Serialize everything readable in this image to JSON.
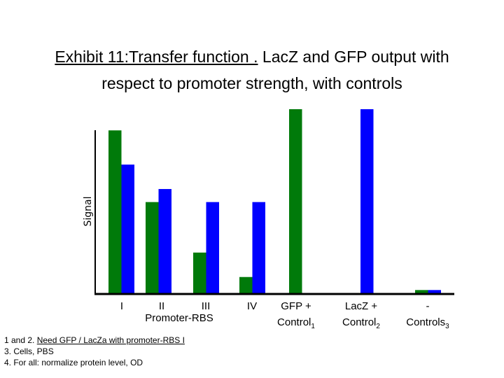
{
  "title": {
    "line1_underlined": "Exhibit 11:Transfer function .",
    "line1_rest": " LacZ and GFP output with",
    "line2": "respect to promoter strength, with controls"
  },
  "notes": {
    "note1_prefix": "1 and 2. ",
    "note1_underlined": "Need GFP / LacZa with promoter-RBS I",
    "note2": "3. Cells, PBS",
    "note3": "4. For all: normalize protein level, OD"
  },
  "colors": {
    "gfp": "#007a0a",
    "lacz": "#0000ff",
    "axis": "#000000"
  },
  "chart_data": {
    "type": "bar",
    "title": "Exhibit 11:Transfer function . LacZ and GFP output with respect to promoter strength, with controls",
    "ylabel": "Signal",
    "xlabel": "Promoter-RBS",
    "ylim": [
      0,
      113
    ],
    "grid": false,
    "categories": [
      {
        "label": "I",
        "sub": ""
      },
      {
        "label": "II",
        "sub": ""
      },
      {
        "label": "III",
        "sub": ""
      },
      {
        "label": "IV",
        "sub": ""
      },
      {
        "label": "GFP +",
        "line2": "Control",
        "sub": "1"
      },
      {
        "label": "LacZ +",
        "line2": "Control",
        "sub": "2"
      },
      {
        "label": "-",
        "line2": "Controls",
        "sub": "3"
      }
    ],
    "series": [
      {
        "name": "GFP",
        "values": [
          100,
          56,
          25,
          10,
          113,
          null,
          2
        ]
      },
      {
        "name": "LacZ",
        "values": [
          79,
          64,
          56,
          56,
          null,
          113,
          2
        ]
      }
    ]
  }
}
